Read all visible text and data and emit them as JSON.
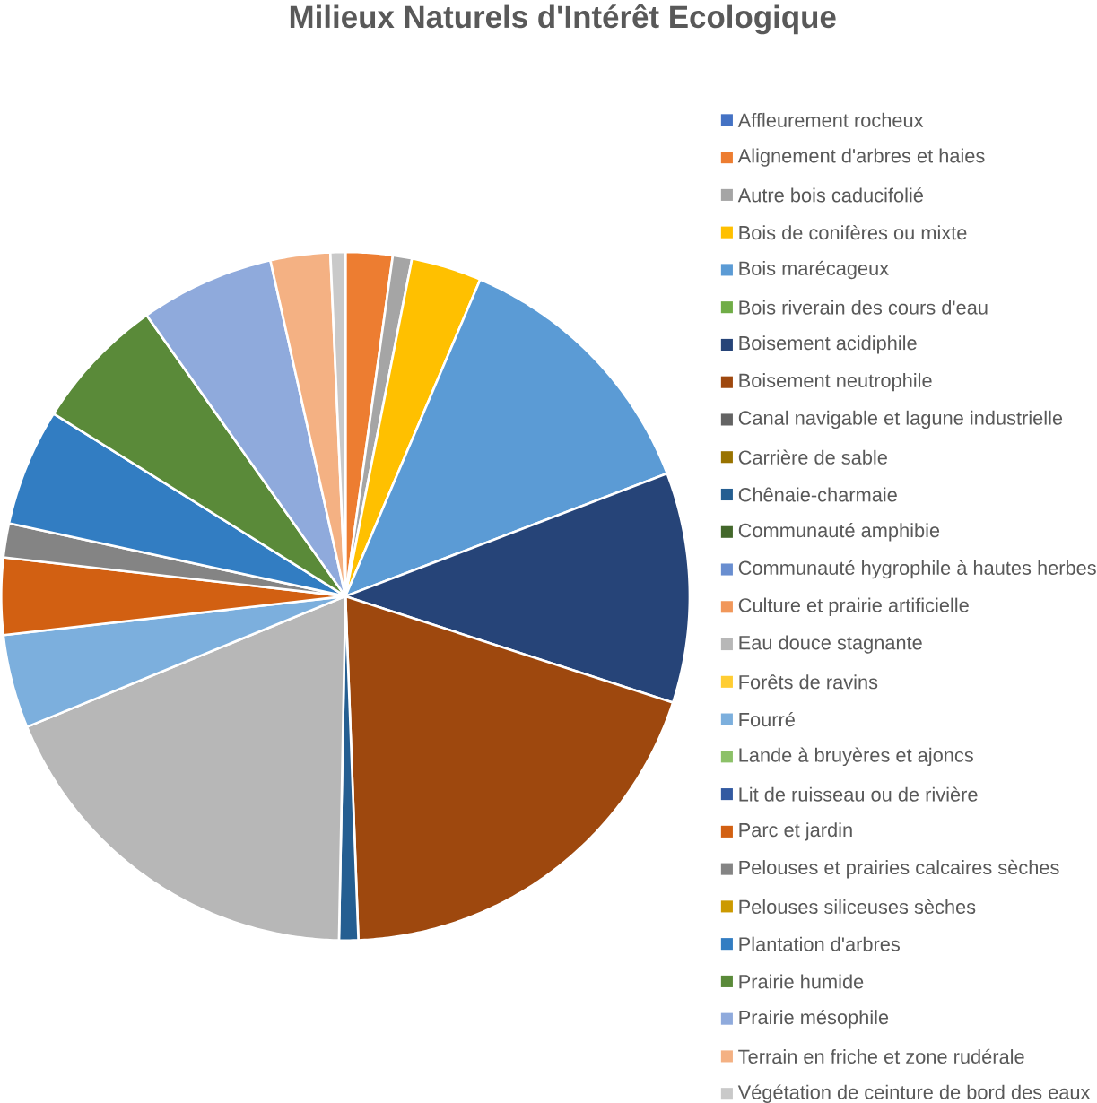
{
  "chart_data": {
    "type": "pie",
    "title": "Milieux Naturels d'Intérêt Ecologique",
    "categories": [
      "Affleurement rocheux",
      "Alignement d'arbres et haies",
      "Autre bois caducifolié",
      "Bois de conifères ou mixte",
      "Bois marécageux",
      "Bois riverain des cours d'eau",
      "Boisement acidiphile",
      "Boisement neutrophile",
      "Canal navigable et lagune industrielle",
      "Carrière de sable",
      "Chênaie-charmaie",
      "Communauté amphibie",
      "Communauté hygrophile à hautes herbes",
      "Culture et prairie artificielle",
      "Eau douce stagnante",
      "Forêts de ravins",
      "Fourré",
      "Lande à bruyères et ajoncs",
      "Lit de ruisseau ou de rivière",
      "Parc et jardin",
      "Pelouses et prairies calcaires sèches",
      "Pelouses siliceuses sèches",
      "Plantation d'arbres",
      "Prairie humide",
      "Prairie mésophile",
      "Terrain en friche et zone rudérale",
      "Végétation de ceinture de bord des eaux"
    ],
    "values": [
      0,
      2.2,
      0.9,
      3.3,
      12.8,
      0,
      10.8,
      19.4,
      0,
      0,
      0.9,
      0,
      0,
      0,
      18.5,
      0,
      4.4,
      0,
      0,
      3.6,
      1.6,
      0,
      5.5,
      6.3,
      6.3,
      2.8,
      0.7
    ],
    "colors": [
      "#4472c4",
      "#ed7d31",
      "#a5a5a5",
      "#ffc000",
      "#5b9bd5",
      "#70ad47",
      "#264478",
      "#9e480e",
      "#636363",
      "#997300",
      "#255e91",
      "#43682b",
      "#698ed0",
      "#f1975a",
      "#b7b7b7",
      "#ffcd33",
      "#7cafdd",
      "#8cc168",
      "#335aa1",
      "#d26012",
      "#848484",
      "#cc9a00",
      "#327dc2",
      "#5a8a39",
      "#8faadc",
      "#f4b183",
      "#c9c9c9"
    ],
    "legend": "right"
  }
}
